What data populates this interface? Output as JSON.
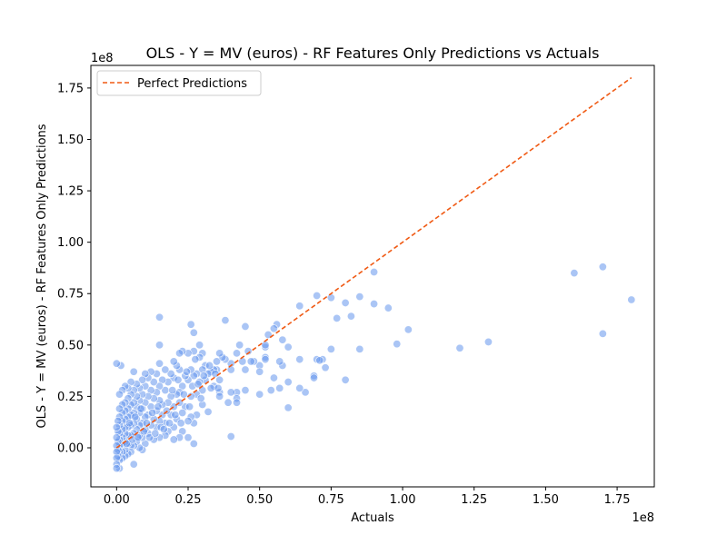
{
  "chart_data": {
    "type": "scatter",
    "title": "OLS - Y = MV (euros) - RF Features Only Predictions vs Actuals",
    "xlabel": "Actuals",
    "ylabel": "OLS - Y = MV (euros) - RF Features Only Predictions",
    "x_offset_label": "1e8",
    "y_offset_label": "1e8",
    "xlim": [
      -0.09,
      1.88
    ],
    "ylim": [
      -0.19,
      1.86
    ],
    "x_ticks": [
      0.0,
      0.25,
      0.5,
      0.75,
      1.0,
      1.25,
      1.5,
      1.75
    ],
    "x_tick_labels": [
      "0.00",
      "0.25",
      "0.50",
      "0.75",
      "1.00",
      "1.25",
      "1.50",
      "1.75"
    ],
    "y_ticks": [
      0.0,
      0.25,
      0.5,
      0.75,
      1.0,
      1.25,
      1.5,
      1.75
    ],
    "y_tick_labels": [
      "0.00",
      "0.25",
      "0.50",
      "0.75",
      "1.00",
      "1.25",
      "1.50",
      "1.75"
    ],
    "grid": false,
    "legend_position": "top-left",
    "colors": {
      "points": "#6495ed",
      "line": "#f05a14"
    },
    "reference_line": {
      "name": "Perfect Predictions",
      "x": [
        0.0,
        1.8
      ],
      "y": [
        0.0,
        1.8
      ]
    },
    "points": [
      [
        1.8,
        0.72
      ],
      [
        1.7,
        0.88
      ],
      [
        1.7,
        0.555
      ],
      [
        1.6,
        0.85
      ],
      [
        1.3,
        0.515
      ],
      [
        1.2,
        0.485
      ],
      [
        1.02,
        0.575
      ],
      [
        0.98,
        0.505
      ],
      [
        0.9,
        0.855
      ],
      [
        0.9,
        0.7
      ],
      [
        0.95,
        0.68
      ],
      [
        0.85,
        0.735
      ],
      [
        0.85,
        0.48
      ],
      [
        0.82,
        0.64
      ],
      [
        0.8,
        0.705
      ],
      [
        0.8,
        0.33
      ],
      [
        0.77,
        0.63
      ],
      [
        0.75,
        0.73
      ],
      [
        0.75,
        0.48
      ],
      [
        0.72,
        0.43
      ],
      [
        0.73,
        0.39
      ],
      [
        0.7,
        0.74
      ],
      [
        0.7,
        0.43
      ],
      [
        0.71,
        0.425
      ],
      [
        0.69,
        0.35
      ],
      [
        0.69,
        0.34
      ],
      [
        0.66,
        0.27
      ],
      [
        0.64,
        0.69
      ],
      [
        0.64,
        0.43
      ],
      [
        0.64,
        0.29
      ],
      [
        0.6,
        0.49
      ],
      [
        0.6,
        0.32
      ],
      [
        0.6,
        0.195
      ],
      [
        0.58,
        0.525
      ],
      [
        0.58,
        0.4
      ],
      [
        0.57,
        0.42
      ],
      [
        0.57,
        0.29
      ],
      [
        0.56,
        0.6
      ],
      [
        0.55,
        0.34
      ],
      [
        0.55,
        0.58
      ],
      [
        0.54,
        0.28
      ],
      [
        0.53,
        0.55
      ],
      [
        0.52,
        0.44
      ],
      [
        0.52,
        0.43
      ],
      [
        0.52,
        0.49
      ],
      [
        0.52,
        0.5
      ],
      [
        0.5,
        0.4
      ],
      [
        0.5,
        0.37
      ],
      [
        0.5,
        0.26
      ],
      [
        0.48,
        0.42
      ],
      [
        0.47,
        0.42
      ],
      [
        0.46,
        0.47
      ],
      [
        0.45,
        0.59
      ],
      [
        0.45,
        0.38
      ],
      [
        0.45,
        0.28
      ],
      [
        0.44,
        0.42
      ],
      [
        0.43,
        0.5
      ],
      [
        0.42,
        0.46
      ],
      [
        0.42,
        0.27
      ],
      [
        0.42,
        0.24
      ],
      [
        0.42,
        0.22
      ],
      [
        0.4,
        0.41
      ],
      [
        0.4,
        0.38
      ],
      [
        0.4,
        0.27
      ],
      [
        0.4,
        0.055
      ],
      [
        0.39,
        0.22
      ],
      [
        0.38,
        0.62
      ],
      [
        0.38,
        0.43
      ],
      [
        0.37,
        0.44
      ],
      [
        0.36,
        0.46
      ],
      [
        0.36,
        0.33
      ],
      [
        0.36,
        0.27
      ],
      [
        0.36,
        0.25
      ],
      [
        0.35,
        0.42
      ],
      [
        0.35,
        0.38
      ],
      [
        0.34,
        0.38
      ],
      [
        0.34,
        0.3
      ],
      [
        0.33,
        0.37
      ],
      [
        0.33,
        0.29
      ],
      [
        0.32,
        0.175
      ],
      [
        0.32,
        0.36
      ],
      [
        0.31,
        0.4
      ],
      [
        0.31,
        0.33
      ],
      [
        0.3,
        0.46
      ],
      [
        0.3,
        0.38
      ],
      [
        0.3,
        0.28
      ],
      [
        0.3,
        0.21
      ],
      [
        0.29,
        0.5
      ],
      [
        0.29,
        0.44
      ],
      [
        0.29,
        0.32
      ],
      [
        0.28,
        0.36
      ],
      [
        0.28,
        0.26
      ],
      [
        0.28,
        0.16
      ],
      [
        0.27,
        0.56
      ],
      [
        0.27,
        0.47
      ],
      [
        0.27,
        0.35
      ],
      [
        0.27,
        0.12
      ],
      [
        0.27,
        0.02
      ],
      [
        0.26,
        0.6
      ],
      [
        0.26,
        0.38
      ],
      [
        0.26,
        0.25
      ],
      [
        0.26,
        0.15
      ],
      [
        0.25,
        0.46
      ],
      [
        0.25,
        0.33
      ],
      [
        0.25,
        0.13
      ],
      [
        0.25,
        0.05
      ],
      [
        0.24,
        0.35
      ],
      [
        0.24,
        0.2
      ],
      [
        0.23,
        0.47
      ],
      [
        0.23,
        0.3
      ],
      [
        0.23,
        0.17
      ],
      [
        0.23,
        0.08
      ],
      [
        0.22,
        0.46
      ],
      [
        0.22,
        0.38
      ],
      [
        0.22,
        0.27
      ],
      [
        0.22,
        0.22
      ],
      [
        0.22,
        0.05
      ],
      [
        0.21,
        0.4
      ],
      [
        0.21,
        0.26
      ],
      [
        0.21,
        0.14
      ],
      [
        0.2,
        0.42
      ],
      [
        0.2,
        0.34
      ],
      [
        0.2,
        0.2
      ],
      [
        0.2,
        0.1
      ],
      [
        0.2,
        0.04
      ],
      [
        0.19,
        0.36
      ],
      [
        0.19,
        0.25
      ],
      [
        0.19,
        0.16
      ],
      [
        0.18,
        0.32
      ],
      [
        0.18,
        0.22
      ],
      [
        0.18,
        0.08
      ],
      [
        0.17,
        0.38
      ],
      [
        0.17,
        0.28
      ],
      [
        0.17,
        0.12
      ],
      [
        0.17,
        0.06
      ],
      [
        0.16,
        0.33
      ],
      [
        0.16,
        0.21
      ],
      [
        0.16,
        0.16
      ],
      [
        0.15,
        0.635
      ],
      [
        0.15,
        0.5
      ],
      [
        0.15,
        0.41
      ],
      [
        0.15,
        0.3
      ],
      [
        0.15,
        0.23
      ],
      [
        0.15,
        0.13
      ],
      [
        0.15,
        0.05
      ],
      [
        0.14,
        0.36
      ],
      [
        0.14,
        0.27
      ],
      [
        0.14,
        0.18
      ],
      [
        0.14,
        0.1
      ],
      [
        0.13,
        0.32
      ],
      [
        0.13,
        0.24
      ],
      [
        0.13,
        0.14
      ],
      [
        0.13,
        0.04
      ],
      [
        0.12,
        0.37
      ],
      [
        0.12,
        0.28
      ],
      [
        0.12,
        0.2
      ],
      [
        0.12,
        0.11
      ],
      [
        0.11,
        0.34
      ],
      [
        0.11,
        0.25
      ],
      [
        0.11,
        0.16
      ],
      [
        0.11,
        0.07
      ],
      [
        0.1,
        0.36
      ],
      [
        0.1,
        0.3
      ],
      [
        0.1,
        0.22
      ],
      [
        0.1,
        0.15
      ],
      [
        0.1,
        0.09
      ],
      [
        0.1,
        0.02
      ],
      [
        0.09,
        0.33
      ],
      [
        0.09,
        0.26
      ],
      [
        0.09,
        0.19
      ],
      [
        0.09,
        0.12
      ],
      [
        0.09,
        0.05
      ],
      [
        0.09,
        -0.01
      ],
      [
        0.08,
        0.29
      ],
      [
        0.08,
        0.23
      ],
      [
        0.08,
        0.17
      ],
      [
        0.08,
        0.11
      ],
      [
        0.08,
        0.06
      ],
      [
        0.08,
        0.0
      ],
      [
        0.07,
        0.31
      ],
      [
        0.07,
        0.25
      ],
      [
        0.07,
        0.2
      ],
      [
        0.07,
        0.14
      ],
      [
        0.07,
        0.09
      ],
      [
        0.07,
        0.03
      ],
      [
        0.06,
        0.37
      ],
      [
        0.06,
        0.28
      ],
      [
        0.06,
        0.22
      ],
      [
        0.06,
        0.17
      ],
      [
        0.06,
        0.12
      ],
      [
        0.06,
        0.07
      ],
      [
        0.06,
        0.01
      ],
      [
        0.06,
        -0.08
      ],
      [
        0.05,
        0.32
      ],
      [
        0.05,
        0.26
      ],
      [
        0.05,
        0.21
      ],
      [
        0.05,
        0.16
      ],
      [
        0.05,
        0.11
      ],
      [
        0.05,
        0.06
      ],
      [
        0.05,
        0.01
      ],
      [
        0.05,
        -0.02
      ],
      [
        0.04,
        0.29
      ],
      [
        0.04,
        0.24
      ],
      [
        0.04,
        0.19
      ],
      [
        0.04,
        0.15
      ],
      [
        0.04,
        0.1
      ],
      [
        0.04,
        0.06
      ],
      [
        0.04,
        0.02
      ],
      [
        0.04,
        -0.03
      ],
      [
        0.03,
        0.3
      ],
      [
        0.03,
        0.22
      ],
      [
        0.03,
        0.18
      ],
      [
        0.03,
        0.14
      ],
      [
        0.03,
        0.1
      ],
      [
        0.03,
        0.07
      ],
      [
        0.03,
        0.03
      ],
      [
        0.03,
        -0.01
      ],
      [
        0.03,
        -0.04
      ],
      [
        0.02,
        0.28
      ],
      [
        0.02,
        0.21
      ],
      [
        0.02,
        0.17
      ],
      [
        0.02,
        0.13
      ],
      [
        0.02,
        0.09
      ],
      [
        0.02,
        0.05
      ],
      [
        0.02,
        0.02
      ],
      [
        0.02,
        -0.02
      ],
      [
        0.02,
        -0.05
      ],
      [
        0.015,
        0.4
      ],
      [
        0.01,
        0.26
      ],
      [
        0.01,
        0.19
      ],
      [
        0.01,
        0.15
      ],
      [
        0.01,
        0.11
      ],
      [
        0.01,
        0.07
      ],
      [
        0.01,
        0.04
      ],
      [
        0.01,
        0.01
      ],
      [
        0.01,
        -0.02
      ],
      [
        0.01,
        -0.06
      ],
      [
        0.01,
        -0.1
      ],
      [
        0.005,
        0.13
      ],
      [
        0.005,
        0.08
      ],
      [
        0.005,
        0.03
      ],
      [
        0.005,
        -0.01
      ],
      [
        0.005,
        -0.04
      ],
      [
        0.0,
        0.41
      ],
      [
        0.0,
        0.1
      ],
      [
        0.0,
        0.05
      ],
      [
        0.0,
        0.01
      ],
      [
        0.0,
        -0.02
      ],
      [
        0.0,
        -0.05
      ],
      [
        0.0,
        -0.08
      ],
      [
        0.0,
        -0.1
      ],
      [
        0.035,
        0.02
      ],
      [
        0.045,
        0.12
      ],
      [
        0.055,
        0.04
      ],
      [
        0.065,
        0.15
      ],
      [
        0.075,
        0.05
      ],
      [
        0.085,
        0.19
      ],
      [
        0.095,
        0.08
      ],
      [
        0.105,
        0.12
      ],
      [
        0.115,
        0.05
      ],
      [
        0.125,
        0.17
      ],
      [
        0.135,
        0.07
      ],
      [
        0.145,
        0.2
      ],
      [
        0.155,
        0.1
      ],
      [
        0.165,
        0.09
      ],
      [
        0.175,
        0.18
      ],
      [
        0.185,
        0.12
      ],
      [
        0.195,
        0.28
      ],
      [
        0.205,
        0.16
      ],
      [
        0.215,
        0.33
      ],
      [
        0.225,
        0.12
      ],
      [
        0.235,
        0.26
      ],
      [
        0.245,
        0.37
      ],
      [
        0.255,
        0.2
      ],
      [
        0.265,
        0.3
      ],
      [
        0.275,
        0.43
      ],
      [
        0.285,
        0.31
      ],
      [
        0.295,
        0.24
      ],
      [
        0.305,
        0.35
      ],
      [
        0.325,
        0.4
      ],
      [
        0.345,
        0.36
      ],
      [
        0.355,
        0.29
      ]
    ]
  }
}
